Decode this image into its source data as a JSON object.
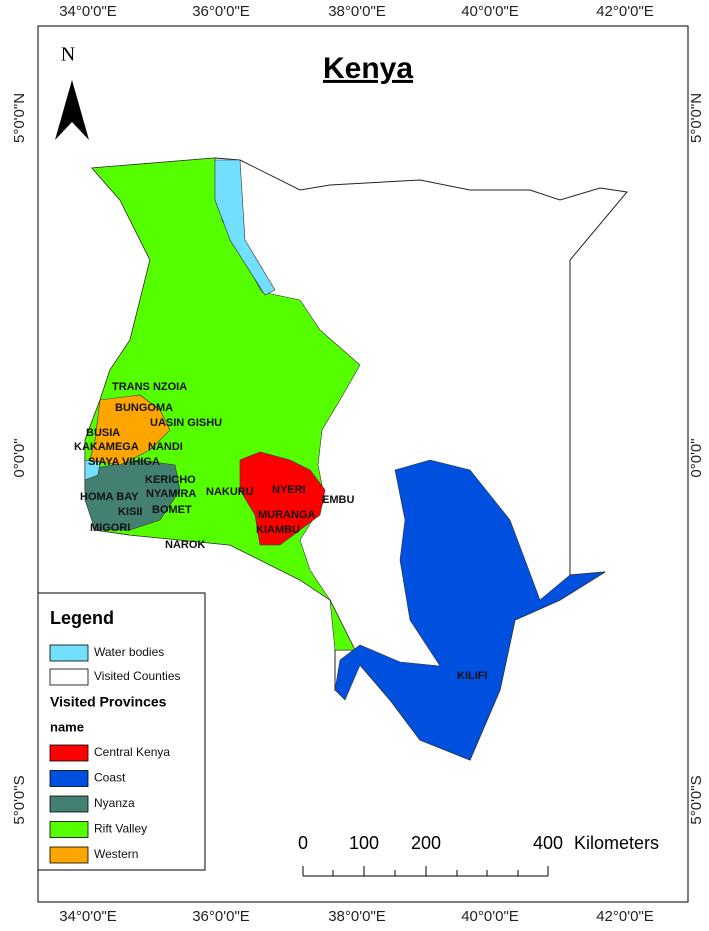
{
  "title": "Kenya",
  "north": "N",
  "longitude_labels": [
    "34°0'0\"E",
    "36°0'0\"E",
    "38°0'0\"E",
    "40°0'0\"E",
    "42°0'0\"E"
  ],
  "latitude_labels": [
    "5°0'0\"N",
    "0°0'0\"",
    "5°0'0\"S"
  ],
  "counties": [
    "TRANS NZOIA",
    "BUNGOMA",
    "UASIN GISHU",
    "BUSIA",
    "KAKAMEGA",
    "NANDI",
    "SIAYA",
    "VIHIGA",
    "KERICHO",
    "HOMA BAY",
    "NYAMIRA",
    "KISII",
    "BOMET",
    "MIGORI",
    "NAKURU",
    "NYERI",
    "EMBU",
    "MURANGA",
    "KIAMBU",
    "NAROK",
    "KILIFI"
  ],
  "legend": {
    "title": "Legend",
    "items": [
      {
        "label": "Water bodies",
        "color": "#73dfff"
      },
      {
        "label": "Visited Counties",
        "color": "#ffffff"
      }
    ],
    "group_title": "Visited Provinces",
    "field": "name",
    "classes": [
      {
        "label": "Central Kenya",
        "color": "#ff0000"
      },
      {
        "label": "Coast",
        "color": "#0050e0"
      },
      {
        "label": "Nyanza",
        "color": "#448071"
      },
      {
        "label": "Rift Valley",
        "color": "#55ff00"
      },
      {
        "label": "Western",
        "color": "#ffa500"
      }
    ]
  },
  "scale_bar": {
    "labels": [
      "0",
      "100",
      "200",
      "400"
    ],
    "unit": "Kilometers"
  }
}
